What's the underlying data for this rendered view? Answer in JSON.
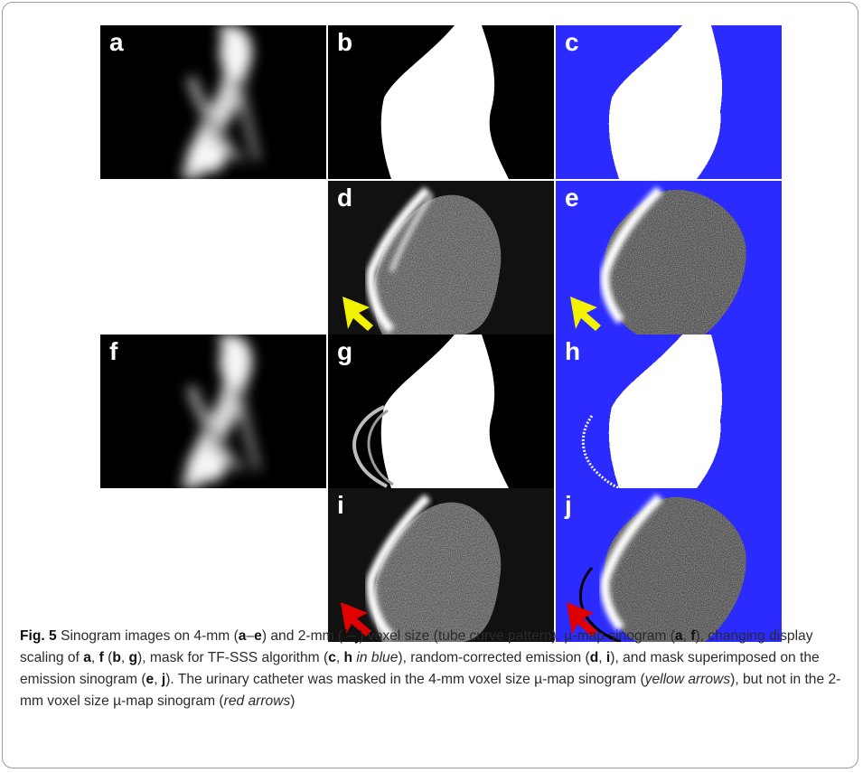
{
  "figure": {
    "panels": [
      {
        "id": "a",
        "label": "a",
        "kind": "mumap"
      },
      {
        "id": "b",
        "label": "b",
        "kind": "scaled"
      },
      {
        "id": "c",
        "label": "c",
        "kind": "mask"
      },
      {
        "id": "d",
        "label": "d",
        "kind": "emission",
        "arrow": "yellow"
      },
      {
        "id": "e",
        "label": "e",
        "kind": "overlay",
        "arrow": "yellow"
      },
      {
        "id": "f",
        "label": "f",
        "kind": "mumap"
      },
      {
        "id": "g",
        "label": "g",
        "kind": "scaled"
      },
      {
        "id": "h",
        "label": "h",
        "kind": "mask"
      },
      {
        "id": "i",
        "label": "i",
        "kind": "emission",
        "arrow": "red"
      },
      {
        "id": "j",
        "label": "j",
        "kind": "overlay",
        "arrow": "red"
      }
    ],
    "colors": {
      "mask_blue": "#2b2bff",
      "yellow_arrow": "#f2f200",
      "red_arrow": "#e00000",
      "background": "#000000"
    }
  },
  "caption": {
    "fig_label": "Fig. 5",
    "runs": [
      {
        "t": " Sinogram images on 4-mm ("
      },
      {
        "t": "a",
        "b": true
      },
      {
        "t": "–"
      },
      {
        "t": "e",
        "b": true
      },
      {
        "t": ") and 2-mm ("
      },
      {
        "t": "f",
        "b": true
      },
      {
        "t": "–"
      },
      {
        "t": "j",
        "b": true
      },
      {
        "t": ") voxel size (tube curve pattern). µ-map sinogram ("
      },
      {
        "t": "a",
        "b": true
      },
      {
        "t": ", "
      },
      {
        "t": "f",
        "b": true
      },
      {
        "t": "), changing display scaling of "
      },
      {
        "t": "a",
        "b": true
      },
      {
        "t": ", "
      },
      {
        "t": "f",
        "b": true
      },
      {
        "t": " ("
      },
      {
        "t": "b",
        "b": true
      },
      {
        "t": ", "
      },
      {
        "t": "g",
        "b": true
      },
      {
        "t": "), mask for TF-SSS algorithm ("
      },
      {
        "t": "c",
        "b": true
      },
      {
        "t": ", "
      },
      {
        "t": "h",
        "b": true
      },
      {
        "t": " "
      },
      {
        "t": "in blue",
        "i": true
      },
      {
        "t": "), random-corrected emission ("
      },
      {
        "t": "d",
        "b": true
      },
      {
        "t": ", "
      },
      {
        "t": "i",
        "b": true
      },
      {
        "t": "), and mask superimposed on the emission sinogram ("
      },
      {
        "t": "e",
        "b": true
      },
      {
        "t": ", "
      },
      {
        "t": "j",
        "b": true
      },
      {
        "t": "). The urinary catheter was masked in the 4-mm voxel size µ-map sinogram ("
      },
      {
        "t": "yellow arrows",
        "i": true
      },
      {
        "t": "), but not in the 2-mm voxel size µ-map sinogram ("
      },
      {
        "t": "red arrows",
        "i": true
      },
      {
        "t": ")"
      }
    ]
  }
}
